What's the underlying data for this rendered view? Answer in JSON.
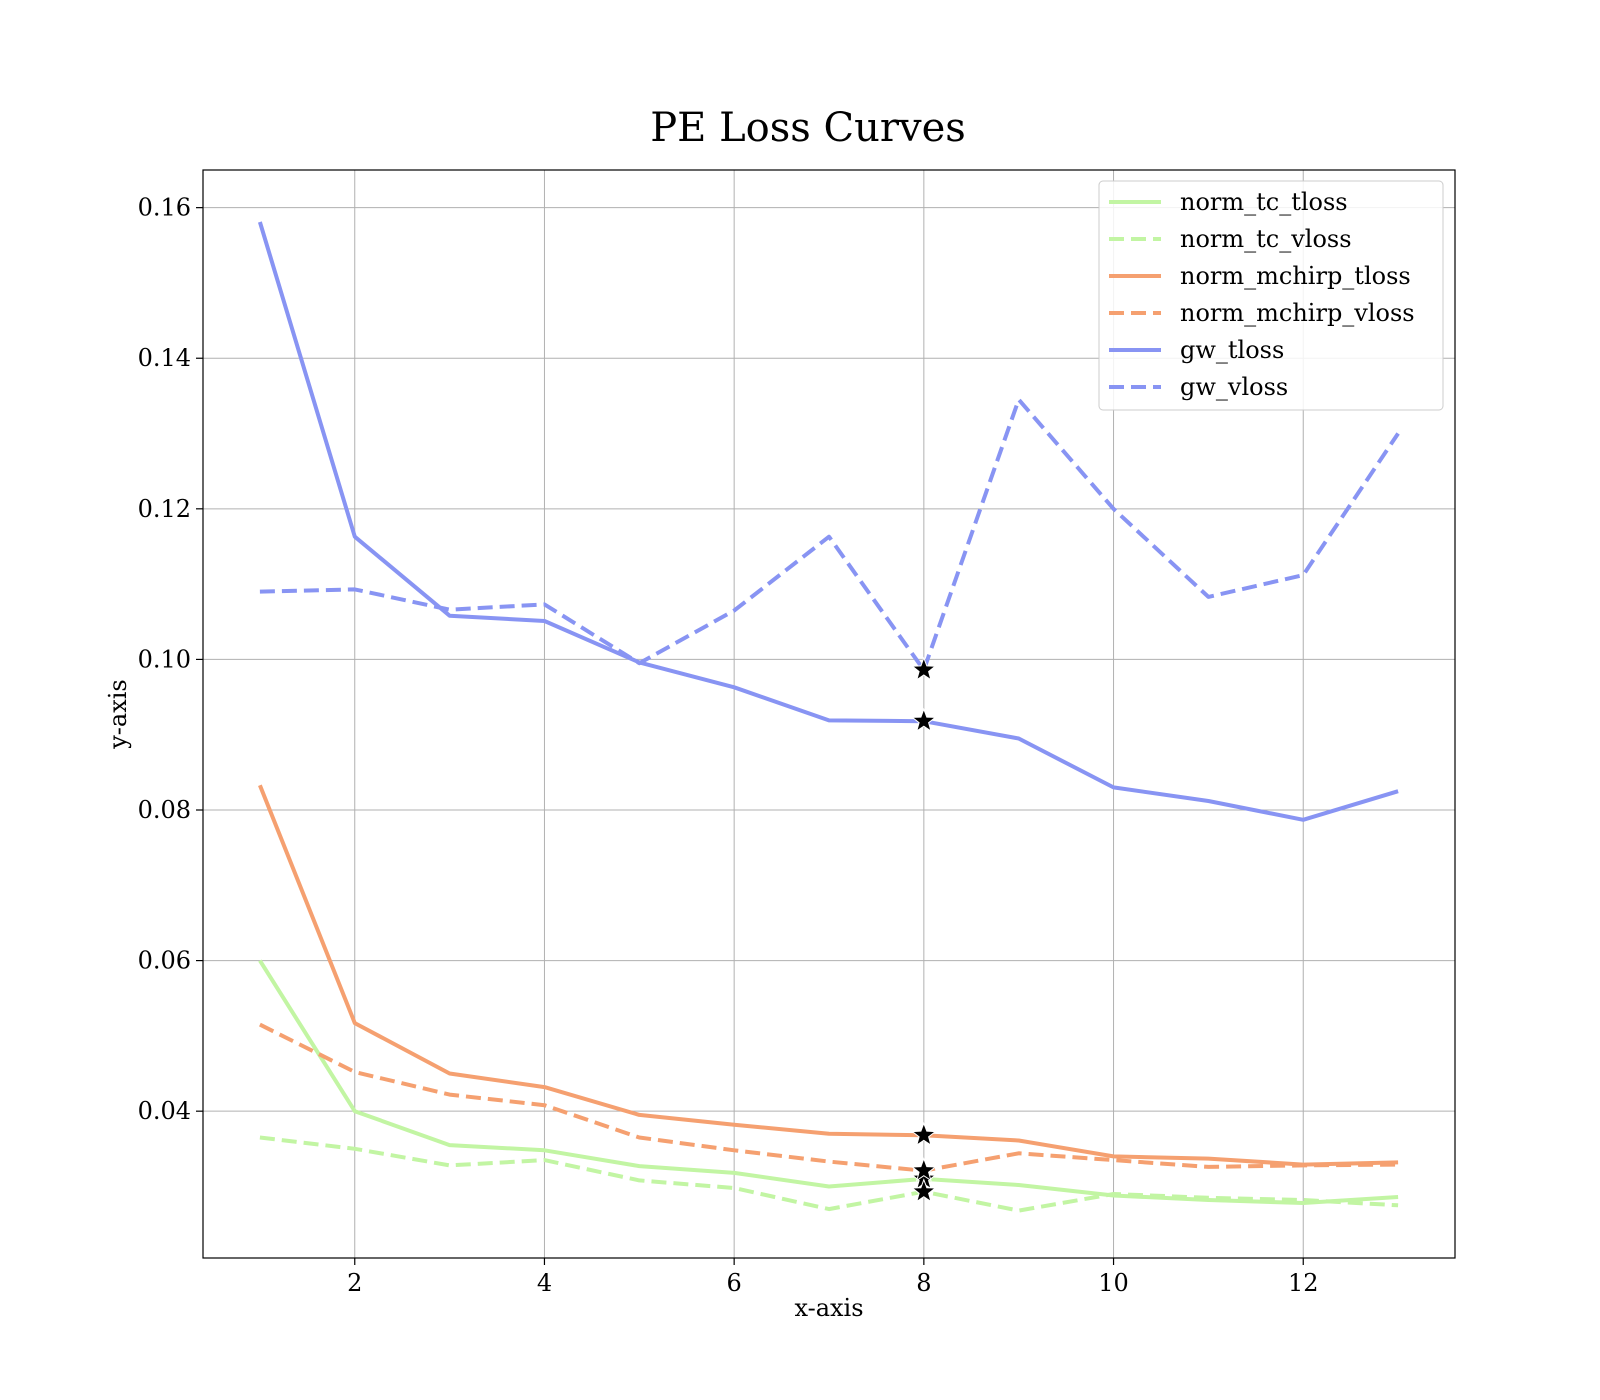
{
  "chart_data": {
    "type": "line",
    "title": "PE Loss Curves",
    "xlabel": "x-axis",
    "ylabel": "y-axis",
    "xlim": [
      0.4,
      13.6
    ],
    "ylim": [
      0.0205,
      0.165
    ],
    "xticks": [
      2,
      4,
      6,
      8,
      10,
      12
    ],
    "yticks": [
      0.04,
      0.06,
      0.08,
      0.1,
      0.12,
      0.14,
      0.16
    ],
    "ytick_labels": [
      "0.04",
      "0.06",
      "0.08",
      "0.10",
      "0.12",
      "0.14",
      "0.16"
    ],
    "grid": true,
    "legend_position": "top-right",
    "x": [
      1,
      2,
      3,
      4,
      5,
      6,
      7,
      8,
      9,
      10,
      11,
      12,
      13
    ],
    "series": [
      {
        "name": "norm_tc_tloss",
        "color": "#c2f5a3",
        "style": "solid",
        "values": [
          0.06,
          0.04,
          0.0355,
          0.0348,
          0.0327,
          0.0318,
          0.03,
          0.031,
          0.0302,
          0.0288,
          0.0282,
          0.0278,
          0.0286
        ]
      },
      {
        "name": "norm_tc_vloss",
        "color": "#c2f5a3",
        "style": "dashed",
        "values": [
          0.0365,
          0.035,
          0.0328,
          0.0335,
          0.0308,
          0.0298,
          0.027,
          0.0293,
          0.0268,
          0.029,
          0.0285,
          0.0282,
          0.0275
        ]
      },
      {
        "name": "norm_mchirp_tloss",
        "color": "#f5a070",
        "style": "solid",
        "values": [
          0.0833,
          0.0517,
          0.045,
          0.0432,
          0.0395,
          0.0382,
          0.037,
          0.0368,
          0.0361,
          0.034,
          0.0337,
          0.0329,
          0.0332
        ]
      },
      {
        "name": "norm_mchirp_vloss",
        "color": "#f5a070",
        "style": "dashed",
        "values": [
          0.0515,
          0.0452,
          0.0422,
          0.0408,
          0.0365,
          0.0348,
          0.0333,
          0.0321,
          0.0344,
          0.0335,
          0.0326,
          0.0328,
          0.0329
        ]
      },
      {
        "name": "gw_tloss",
        "color": "#8894f3",
        "style": "solid",
        "values": [
          0.1581,
          0.1163,
          0.1058,
          0.1051,
          0.0996,
          0.0963,
          0.0919,
          0.0918,
          0.0895,
          0.083,
          0.0812,
          0.0787,
          0.0825
        ]
      },
      {
        "name": "gw_vloss",
        "color": "#8894f3",
        "style": "dashed",
        "values": [
          0.109,
          0.1093,
          0.1066,
          0.1073,
          0.0995,
          0.1065,
          0.1163,
          0.0986,
          0.1345,
          0.12,
          0.1083,
          0.1112,
          0.13
        ]
      }
    ],
    "markers": {
      "symbol": "star",
      "color": "#000000",
      "x": 8
    }
  }
}
